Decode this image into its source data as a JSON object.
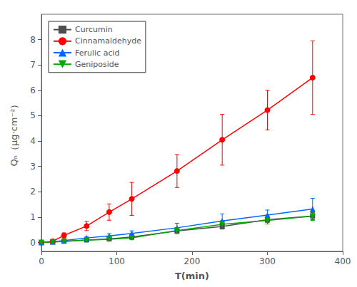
{
  "chart_data": {
    "type": "line",
    "title": "",
    "xlabel": "T(min)",
    "ylabel": "Qₙ（μg·cm⁻²）",
    "x": [
      0,
      15,
      30,
      60,
      90,
      120,
      180,
      240,
      300,
      360
    ],
    "series": [
      {
        "name": "Curcumin",
        "color": "#4d4d4d",
        "marker": "square",
        "values": [
          0.0,
          0.02,
          0.05,
          0.1,
          0.14,
          0.22,
          0.46,
          0.63,
          0.9,
          1.05
        ],
        "yerr": [
          0.0,
          0.015,
          0.02,
          0.04,
          0.05,
          0.06,
          0.08,
          0.1,
          0.11,
          0.13
        ]
      },
      {
        "name": "Cinnamaldehyde",
        "color": "#ff0000",
        "marker": "circle",
        "values": [
          0.0,
          0.05,
          0.28,
          0.65,
          1.2,
          1.72,
          2.82,
          4.05,
          5.22,
          6.5
        ],
        "yerr": [
          0.0,
          0.03,
          0.1,
          0.18,
          0.32,
          0.65,
          0.65,
          1.0,
          0.78,
          1.45
        ]
      },
      {
        "name": "Ferulic acid",
        "color": "#0066ff",
        "marker": "triangle",
        "values": [
          0.0,
          0.03,
          0.08,
          0.18,
          0.26,
          0.36,
          0.58,
          0.85,
          1.08,
          1.32
        ],
        "yerr": [
          0.0,
          0.02,
          0.04,
          0.06,
          0.09,
          0.1,
          0.18,
          0.28,
          0.2,
          0.42
        ]
      },
      {
        "name": "Geniposide",
        "color": "#00aa00",
        "marker": "triangle-down",
        "values": [
          0.0,
          0.02,
          0.04,
          0.09,
          0.13,
          0.18,
          0.47,
          0.72,
          0.87,
          1.04
        ],
        "yerr": [
          0.0,
          0.015,
          0.03,
          0.04,
          0.06,
          0.07,
          0.12,
          0.14,
          0.14,
          0.17
        ]
      }
    ],
    "xlim": [
      0,
      400
    ],
    "xticks": [
      0,
      100,
      200,
      300,
      400
    ],
    "ylim": [
      -0.35,
      9.0
    ],
    "yticks": [
      0,
      1,
      2,
      3,
      4,
      5,
      6,
      7,
      8
    ],
    "grid": false,
    "legend": "upper left"
  }
}
